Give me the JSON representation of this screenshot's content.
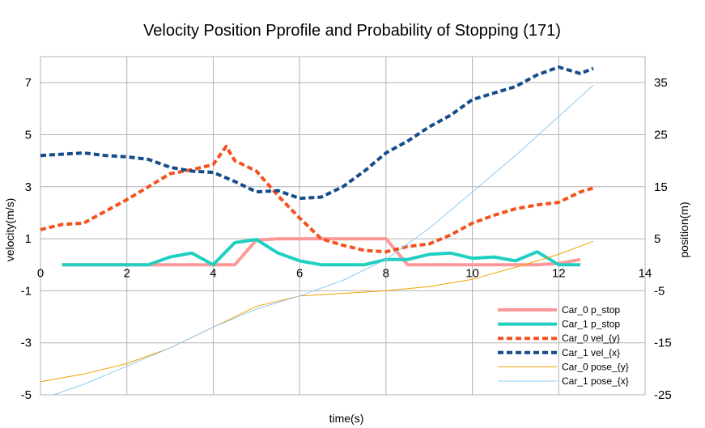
{
  "chart_data": {
    "type": "line",
    "title": "Velocity Position Pprofile and Probability of Stopping (171)",
    "xlabel": "time(s)",
    "ylabel": "velocity(m/s)",
    "y2label": "position(m)",
    "xlim": [
      0,
      14
    ],
    "ylim": [
      -5,
      8
    ],
    "y2lim": [
      -25,
      40
    ],
    "xticks": [
      "0",
      "2",
      "4",
      "6",
      "8",
      "10",
      "12",
      "14"
    ],
    "yticks": [
      "-5",
      "-3",
      "-1",
      "1",
      "3",
      "5",
      "7"
    ],
    "y2ticks": [
      "-25",
      "-15",
      "-5",
      "5",
      "15",
      "25",
      "35"
    ],
    "grid": true,
    "legend_position": "bottom-right",
    "series": [
      {
        "name": "Car_0  p_stop",
        "axis": "left",
        "color": "#ff9999",
        "style": "solid-thick",
        "x": [
          0.5,
          1.0,
          1.5,
          2.0,
          2.5,
          3.0,
          3.5,
          4.0,
          4.5,
          5.0,
          5.5,
          6.0,
          6.5,
          7.0,
          7.5,
          8.0,
          8.5,
          9.0,
          9.5,
          10.0,
          10.5,
          11.0,
          11.5,
          12.0,
          12.5
        ],
        "y": [
          0,
          0,
          0,
          0,
          0,
          0,
          0,
          0,
          0,
          0.95,
          1.0,
          1.0,
          1.0,
          1.0,
          1.0,
          1.0,
          0,
          0,
          0,
          0,
          0,
          0,
          0,
          0.05,
          0.2
        ]
      },
      {
        "name": "Car_1 p_stop",
        "axis": "left",
        "color": "#1fcfc2",
        "style": "solid-thick",
        "x": [
          0.5,
          1.0,
          1.5,
          2.0,
          2.5,
          3.0,
          3.5,
          4.0,
          4.5,
          5.0,
          5.5,
          6.0,
          6.5,
          7.0,
          7.5,
          8.0,
          8.5,
          9.0,
          9.5,
          10.0,
          10.5,
          11.0,
          11.5,
          12.0,
          12.5
        ],
        "y": [
          0,
          0,
          0,
          0,
          0,
          0.3,
          0.45,
          0,
          0.85,
          0.97,
          0.45,
          0.15,
          0,
          0,
          0,
          0.2,
          0.2,
          0.4,
          0.45,
          0.25,
          0.3,
          0.15,
          0.5,
          0,
          0
        ]
      },
      {
        "name": "Car_0 vel_{y}",
        "axis": "left",
        "color": "#f4511e",
        "style": "dashed-thick",
        "x": [
          0,
          0.5,
          1.0,
          1.5,
          2.0,
          2.5,
          3.0,
          3.5,
          4.0,
          4.3,
          4.5,
          5.0,
          5.5,
          6.0,
          6.5,
          7.0,
          7.5,
          8.0,
          8.5,
          9.0,
          9.5,
          10.0,
          10.5,
          11.0,
          11.5,
          12.0,
          12.5,
          12.8
        ],
        "y": [
          1.35,
          1.55,
          1.6,
          2.05,
          2.5,
          3.0,
          3.5,
          3.65,
          3.85,
          4.55,
          4.0,
          3.6,
          2.65,
          1.8,
          1.0,
          0.75,
          0.55,
          0.5,
          0.7,
          0.8,
          1.15,
          1.6,
          1.9,
          2.15,
          2.3,
          2.4,
          2.8,
          2.95
        ]
      },
      {
        "name": "Car_1 vel_{x}",
        "axis": "left",
        "color": "#154c8a",
        "style": "dashed-thick",
        "x": [
          0,
          0.5,
          1.0,
          1.5,
          2.0,
          2.5,
          3.0,
          3.5,
          4.0,
          4.5,
          5.0,
          5.5,
          6.0,
          6.5,
          7.0,
          7.5,
          8.0,
          8.5,
          9.0,
          9.5,
          10.0,
          10.5,
          11.0,
          11.5,
          12.0,
          12.5,
          12.8
        ],
        "y": [
          4.2,
          4.25,
          4.3,
          4.2,
          4.15,
          4.05,
          3.75,
          3.6,
          3.55,
          3.2,
          2.8,
          2.85,
          2.55,
          2.6,
          3.0,
          3.6,
          4.3,
          4.75,
          5.3,
          5.75,
          6.35,
          6.6,
          6.85,
          7.3,
          7.6,
          7.35,
          7.55
        ]
      },
      {
        "name": "Car_0 pose_{y}",
        "axis": "right",
        "color": "#f2a000",
        "style": "solid-thin",
        "x": [
          0,
          1,
          2,
          3,
          4,
          5,
          6,
          7,
          8,
          9,
          10,
          11,
          12,
          12.8
        ],
        "y": [
          -22.5,
          -21,
          -19,
          -16,
          -12,
          -8,
          -6,
          -5.5,
          -5,
          -4.2,
          -2.8,
          -0.5,
          2,
          4.5
        ]
      },
      {
        "name": "Car_1 pose_{x}",
        "axis": "right",
        "color": "#8ccbf2",
        "style": "solid-thin",
        "x": [
          0.3,
          1,
          2,
          3,
          4,
          5,
          6,
          7,
          8,
          9,
          10,
          11,
          12,
          12.8
        ],
        "y": [
          -25,
          -23,
          -19.5,
          -16,
          -12,
          -8.5,
          -6,
          -3,
          1,
          7,
          14,
          21,
          28.5,
          34.5
        ]
      }
    ]
  }
}
